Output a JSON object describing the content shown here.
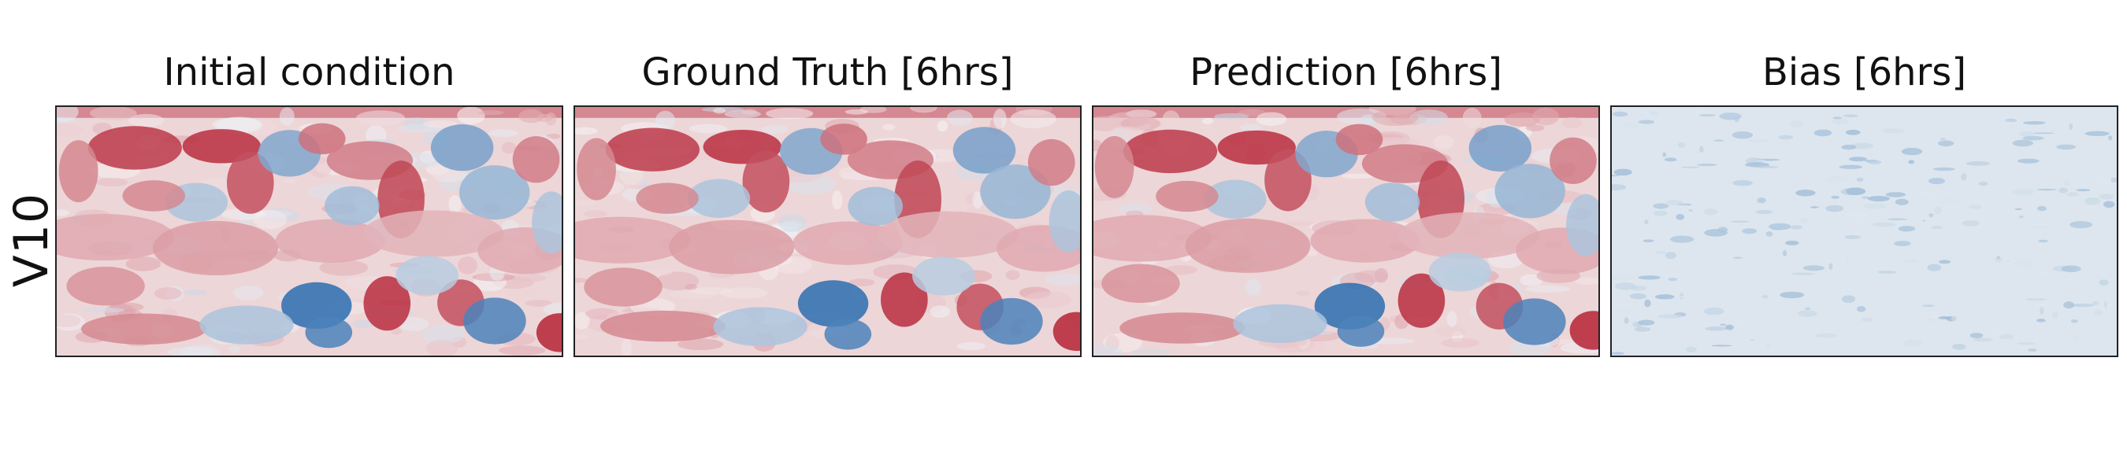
{
  "chart_data": {
    "type": "heatmap",
    "row_label": "V10",
    "panels": [
      {
        "title": "Initial condition",
        "field": "forecast"
      },
      {
        "title": "Ground Truth [6hrs]",
        "field": "forecast"
      },
      {
        "title": "Prediction [6hrs]",
        "field": "forecast"
      },
      {
        "title": "Bias [6hrs]",
        "field": "bias"
      }
    ],
    "colormap": "RdBu_r",
    "colormap_colors": {
      "negative": "#2166ac",
      "neutral": "#f7f7f7",
      "positive": "#b2182b"
    }
  }
}
